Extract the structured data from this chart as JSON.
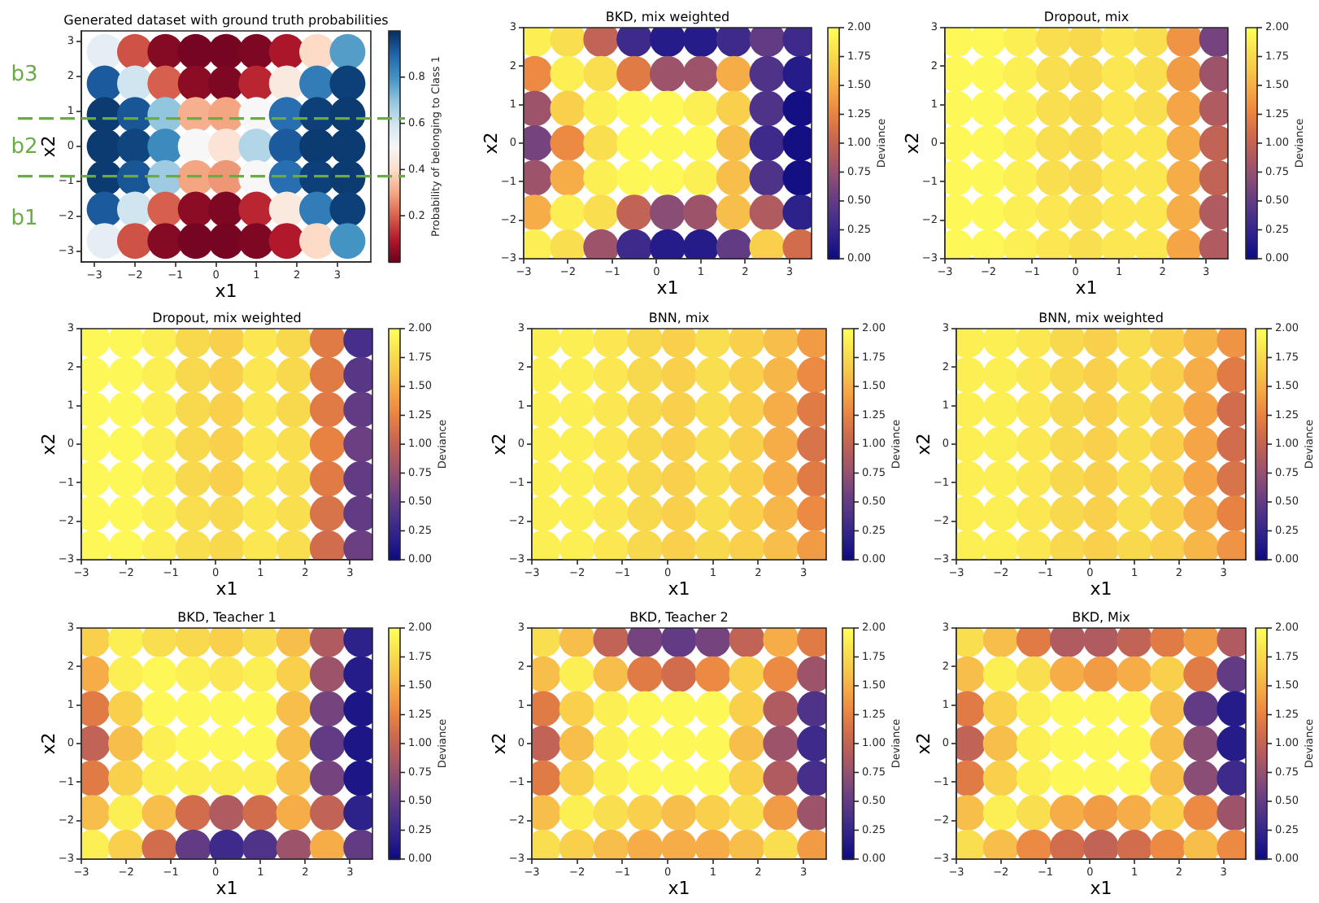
{
  "chart_data": [
    {
      "type": "scatter",
      "title": "Generated dataset with ground truth probabilities",
      "xlabel": "x1",
      "ylabel": "x2",
      "clabel": "Probability of belonging to Class 1",
      "marker": "circle",
      "x": [
        -2.75,
        -2,
        -1.25,
        -0.5,
        0.25,
        1,
        1.75,
        2.5,
        3.25,
        -2.75,
        -2,
        -1.25,
        -0.5,
        0.25,
        1,
        1.75,
        2.5,
        3.25,
        -2.75,
        -2,
        -1.25,
        -0.5,
        0.25,
        1,
        1.75,
        2.5,
        3.25,
        -2.75,
        -2,
        -1.25,
        -0.5,
        0.25,
        1,
        1.75,
        2.5,
        3.25,
        -2.75,
        -2,
        -1.25,
        -0.5,
        0.25,
        1,
        1.75,
        2.5,
        3.25,
        -2.75,
        -2,
        -1.25,
        -0.5,
        0.25,
        1,
        1.75,
        2.5,
        3.25,
        -2.75,
        -2,
        -1.25,
        -0.5,
        0.25,
        1,
        1.75,
        2.5,
        3.25
      ],
      "values": [
        2.7,
        2.7,
        2.7,
        2.7,
        2.7,
        2.7,
        2.7,
        2.7,
        2.7,
        1.8,
        1.8,
        1.8,
        1.8,
        1.8,
        1.8,
        1.8,
        1.8,
        1.8,
        0.9,
        0.9,
        0.9,
        0.9,
        0.9,
        0.9,
        0.9,
        0.9,
        0.9,
        0,
        0,
        0,
        0,
        0,
        0,
        0,
        0,
        0,
        -0.9,
        -0.9,
        -0.9,
        -0.9,
        -0.9,
        -0.9,
        -0.9,
        -0.9,
        -0.9,
        -1.8,
        -1.8,
        -1.8,
        -1.8,
        -1.8,
        -1.8,
        -1.8,
        -1.8,
        -1.8,
        -2.7,
        -2.7,
        -2.7,
        -2.7,
        -2.7,
        -2.7,
        -2.7,
        -2.7,
        -2.7
      ],
      "cvalues": [
        0.55,
        0.18,
        0.04,
        0.02,
        0.02,
        0.03,
        0.09,
        0.4,
        0.78,
        0.92,
        0.6,
        0.2,
        0.05,
        0.03,
        0.12,
        0.45,
        0.85,
        0.97,
        0.98,
        0.93,
        0.7,
        0.32,
        0.3,
        0.5,
        0.88,
        0.97,
        0.98,
        0.98,
        0.96,
        0.82,
        0.5,
        0.43,
        0.65,
        0.92,
        0.98,
        0.98,
        0.98,
        0.93,
        0.68,
        0.3,
        0.28,
        0.5,
        0.88,
        0.97,
        0.98,
        0.92,
        0.6,
        0.2,
        0.05,
        0.03,
        0.12,
        0.45,
        0.85,
        0.97,
        0.55,
        0.18,
        0.04,
        0.02,
        0.02,
        0.03,
        0.1,
        0.4,
        0.8
      ],
      "xlim": [
        -3.325,
        3.825
      ],
      "ylim": [
        -3.3,
        3.3
      ],
      "xticks": [
        -3,
        -2,
        -1,
        0,
        1,
        2,
        3
      ],
      "yticks": [
        -3,
        -2,
        -1,
        0,
        1,
        2,
        3
      ],
      "clim": [
        0,
        1
      ],
      "cticks": [
        0.2,
        0.4,
        0.6,
        0.8
      ],
      "ref_lines": [
        {
          "axis": "y",
          "value": 0.8,
          "color": "#6aab46",
          "line_style": "dashed"
        },
        {
          "axis": "y",
          "value": -0.85,
          "color": "#6aab46",
          "line_style": "dashed"
        }
      ],
      "annotations": [
        "b3",
        "b2",
        "b1"
      ]
    },
    {
      "type": "scatter",
      "title": "BKD, mix weighted",
      "xlabel": "x1",
      "ylabel": "x2",
      "clabel": "Deviance",
      "marker": "circle",
      "x": [
        -2.75,
        -2,
        -1.25,
        -0.5,
        0.25,
        1,
        1.75,
        2.5,
        3.25,
        -2.75,
        -2,
        -1.25,
        -0.5,
        0.25,
        1,
        1.75,
        2.5,
        3.25,
        -2.75,
        -2,
        -1.25,
        -0.5,
        0.25,
        1,
        1.75,
        2.5,
        3.25,
        -2.75,
        -2,
        -1.25,
        -0.5,
        0.25,
        1,
        1.75,
        2.5,
        3.25,
        -2.75,
        -2,
        -1.25,
        -0.5,
        0.25,
        1,
        1.75,
        2.5,
        3.25,
        -2.75,
        -2,
        -1.25,
        -0.5,
        0.25,
        1,
        1.75,
        2.5,
        3.25,
        -2.75,
        -2,
        -1.25,
        -0.5,
        0.25,
        1,
        1.75,
        2.5,
        3.25
      ],
      "values": [
        2.7,
        2.7,
        2.7,
        2.7,
        2.7,
        2.7,
        2.7,
        2.7,
        2.7,
        1.8,
        1.8,
        1.8,
        1.8,
        1.8,
        1.8,
        1.8,
        1.8,
        1.8,
        0.9,
        0.9,
        0.9,
        0.9,
        0.9,
        0.9,
        0.9,
        0.9,
        0.9,
        0,
        0,
        0,
        0,
        0,
        0,
        0,
        0,
        0,
        -0.9,
        -0.9,
        -0.9,
        -0.9,
        -0.9,
        -0.9,
        -0.9,
        -0.9,
        -0.9,
        -1.8,
        -1.8,
        -1.8,
        -1.8,
        -1.8,
        -1.8,
        -1.8,
        -1.8,
        -1.8,
        -2.7,
        -2.7,
        -2.7,
        -2.7,
        -2.7,
        -2.7,
        -2.7,
        -2.7,
        -2.7
      ],
      "cvalues": [
        1.9,
        1.8,
        1.0,
        0.3,
        0.15,
        0.15,
        0.3,
        0.5,
        0.3,
        1.3,
        1.9,
        1.8,
        1.2,
        0.8,
        0.8,
        1.5,
        0.4,
        0.15,
        0.8,
        1.7,
        1.9,
        1.95,
        1.95,
        1.9,
        1.7,
        0.4,
        0.05,
        0.6,
        1.3,
        1.8,
        1.95,
        1.95,
        1.95,
        1.6,
        0.3,
        0.05,
        0.8,
        1.5,
        1.9,
        1.95,
        1.95,
        1.9,
        1.6,
        0.4,
        0.05,
        1.5,
        1.9,
        1.8,
        1.0,
        0.7,
        0.8,
        1.6,
        0.9,
        0.2,
        1.9,
        1.8,
        0.8,
        0.3,
        0.15,
        0.15,
        0.5,
        1.7,
        1.1
      ],
      "xlim": [
        -3,
        3.5
      ],
      "ylim": [
        -3,
        3
      ],
      "xticks": [
        -3,
        -2,
        -1,
        0,
        1,
        2,
        3
      ],
      "yticks": [
        -3,
        -2,
        -1,
        0,
        1,
        2,
        3
      ],
      "clim": [
        0,
        2
      ],
      "cticks": [
        {
          "value": 0,
          "label": "0.00"
        },
        0.25,
        {
          "value": 0.5,
          "label": "0.50"
        },
        0.75,
        {
          "value": 1,
          "label": "1.00"
        },
        1.25,
        {
          "value": 1.5,
          "label": "1.50"
        },
        1.75,
        {
          "value": 2,
          "label": "2.00"
        }
      ]
    },
    {
      "type": "scatter",
      "title": "Dropout, mix",
      "xlabel": "x1",
      "ylabel": "x2",
      "clabel": "Deviance",
      "marker": "circle",
      "x": [
        -2.75,
        -2,
        -1.25,
        -0.5,
        0.25,
        1,
        1.75,
        2.5,
        3.25,
        -2.75,
        -2,
        -1.25,
        -0.5,
        0.25,
        1,
        1.75,
        2.5,
        3.25,
        -2.75,
        -2,
        -1.25,
        -0.5,
        0.25,
        1,
        1.75,
        2.5,
        3.25,
        -2.75,
        -2,
        -1.25,
        -0.5,
        0.25,
        1,
        1.75,
        2.5,
        3.25,
        -2.75,
        -2,
        -1.25,
        -0.5,
        0.25,
        1,
        1.75,
        2.5,
        3.25,
        -2.75,
        -2,
        -1.25,
        -0.5,
        0.25,
        1,
        1.75,
        2.5,
        3.25,
        -2.75,
        -2,
        -1.25,
        -0.5,
        0.25,
        1,
        1.75,
        2.5,
        3.25
      ],
      "values": [
        2.7,
        2.7,
        2.7,
        2.7,
        2.7,
        2.7,
        2.7,
        2.7,
        2.7,
        1.8,
        1.8,
        1.8,
        1.8,
        1.8,
        1.8,
        1.8,
        1.8,
        1.8,
        0.9,
        0.9,
        0.9,
        0.9,
        0.9,
        0.9,
        0.9,
        0.9,
        0.9,
        0,
        0,
        0,
        0,
        0,
        0,
        0,
        0,
        0,
        -0.9,
        -0.9,
        -0.9,
        -0.9,
        -0.9,
        -0.9,
        -0.9,
        -0.9,
        -0.9,
        -1.8,
        -1.8,
        -1.8,
        -1.8,
        -1.8,
        -1.8,
        -1.8,
        -1.8,
        -1.8,
        -2.7,
        -2.7,
        -2.7,
        -2.7,
        -2.7,
        -2.7,
        -2.7,
        -2.7,
        -2.7
      ],
      "cvalues": [
        1.95,
        1.95,
        1.9,
        1.8,
        1.75,
        1.85,
        1.8,
        1.35,
        0.6,
        1.95,
        1.95,
        1.9,
        1.8,
        1.75,
        1.85,
        1.8,
        1.4,
        0.8,
        1.95,
        1.95,
        1.9,
        1.8,
        1.75,
        1.85,
        1.8,
        1.45,
        0.9,
        1.95,
        1.95,
        1.9,
        1.8,
        1.75,
        1.85,
        1.85,
        1.5,
        1.0,
        1.95,
        1.95,
        1.9,
        1.8,
        1.75,
        1.85,
        1.85,
        1.5,
        1.0,
        1.95,
        1.95,
        1.9,
        1.85,
        1.8,
        1.85,
        1.85,
        1.5,
        0.9,
        1.95,
        1.95,
        1.9,
        1.85,
        1.8,
        1.85,
        1.85,
        1.45,
        0.9
      ],
      "xlim": [
        -3,
        3.5
      ],
      "ylim": [
        -3,
        3
      ],
      "xticks": [
        -3,
        -2,
        -1,
        0,
        1,
        2,
        3
      ],
      "yticks": [
        -3,
        -2,
        -1,
        0,
        1,
        2,
        3
      ],
      "clim": [
        0,
        2
      ],
      "cticks": [
        {
          "value": 0,
          "label": "0.00"
        },
        0.25,
        {
          "value": 0.5,
          "label": "0.50"
        },
        0.75,
        {
          "value": 1,
          "label": "1.00"
        },
        1.25,
        {
          "value": 1.5,
          "label": "1.50"
        },
        1.75,
        {
          "value": 2,
          "label": "2.00"
        }
      ]
    },
    {
      "type": "scatter",
      "title": "Dropout, mix weighted",
      "xlabel": "x1",
      "ylabel": "x2",
      "clabel": "Deviance",
      "marker": "circle",
      "x": [
        -2.75,
        -2,
        -1.25,
        -0.5,
        0.25,
        1,
        1.75,
        2.5,
        3.25,
        -2.75,
        -2,
        -1.25,
        -0.5,
        0.25,
        1,
        1.75,
        2.5,
        3.25,
        -2.75,
        -2,
        -1.25,
        -0.5,
        0.25,
        1,
        1.75,
        2.5,
        3.25,
        -2.75,
        -2,
        -1.25,
        -0.5,
        0.25,
        1,
        1.75,
        2.5,
        3.25,
        -2.75,
        -2,
        -1.25,
        -0.5,
        0.25,
        1,
        1.75,
        2.5,
        3.25,
        -2.75,
        -2,
        -1.25,
        -0.5,
        0.25,
        1,
        1.75,
        2.5,
        3.25,
        -2.75,
        -2,
        -1.25,
        -0.5,
        0.25,
        1,
        1.75,
        2.5,
        3.25
      ],
      "values": [
        2.7,
        2.7,
        2.7,
        2.7,
        2.7,
        2.7,
        2.7,
        2.7,
        2.7,
        1.8,
        1.8,
        1.8,
        1.8,
        1.8,
        1.8,
        1.8,
        1.8,
        1.8,
        0.9,
        0.9,
        0.9,
        0.9,
        0.9,
        0.9,
        0.9,
        0.9,
        0.9,
        0,
        0,
        0,
        0,
        0,
        0,
        0,
        0,
        0,
        -0.9,
        -0.9,
        -0.9,
        -0.9,
        -0.9,
        -0.9,
        -0.9,
        -0.9,
        -0.9,
        -1.8,
        -1.8,
        -1.8,
        -1.8,
        -1.8,
        -1.8,
        -1.8,
        -1.8,
        -1.8,
        -2.7,
        -2.7,
        -2.7,
        -2.7,
        -2.7,
        -2.7,
        -2.7,
        -2.7,
        -2.7
      ],
      "cvalues": [
        1.95,
        1.95,
        1.9,
        1.75,
        1.7,
        1.85,
        1.75,
        1.2,
        0.35,
        1.95,
        1.95,
        1.9,
        1.75,
        1.7,
        1.85,
        1.75,
        1.2,
        0.45,
        1.95,
        1.95,
        1.9,
        1.75,
        1.7,
        1.85,
        1.75,
        1.2,
        0.5,
        1.95,
        1.95,
        1.9,
        1.75,
        1.7,
        1.85,
        1.8,
        1.25,
        0.55,
        1.95,
        1.95,
        1.9,
        1.75,
        1.7,
        1.85,
        1.8,
        1.2,
        0.5,
        1.95,
        1.95,
        1.9,
        1.8,
        1.75,
        1.85,
        1.8,
        1.15,
        0.5,
        1.95,
        1.95,
        1.9,
        1.8,
        1.75,
        1.85,
        1.8,
        1.1,
        0.55
      ],
      "xlim": [
        -3,
        3.5
      ],
      "ylim": [
        -3,
        3
      ],
      "xticks": [
        -3,
        -2,
        -1,
        0,
        1,
        2,
        3
      ],
      "yticks": [
        -3,
        -2,
        -1,
        0,
        1,
        2,
        3
      ],
      "clim": [
        0,
        2
      ],
      "cticks": [
        {
          "value": 0,
          "label": "0.00"
        },
        0.25,
        {
          "value": 0.5,
          "label": "0.50"
        },
        0.75,
        {
          "value": 1,
          "label": "1.00"
        },
        1.25,
        {
          "value": 1.5,
          "label": "1.50"
        },
        1.75,
        {
          "value": 2,
          "label": "2.00"
        }
      ]
    },
    {
      "type": "scatter",
      "title": "BNN, mix",
      "xlabel": "x1",
      "ylabel": "x2",
      "clabel": "Deviance",
      "marker": "circle",
      "x": [
        -2.75,
        -2,
        -1.25,
        -0.5,
        0.25,
        1,
        1.75,
        2.5,
        3.25,
        -2.75,
        -2,
        -1.25,
        -0.5,
        0.25,
        1,
        1.75,
        2.5,
        3.25,
        -2.75,
        -2,
        -1.25,
        -0.5,
        0.25,
        1,
        1.75,
        2.5,
        3.25,
        -2.75,
        -2,
        -1.25,
        -0.5,
        0.25,
        1,
        1.75,
        2.5,
        3.25,
        -2.75,
        -2,
        -1.25,
        -0.5,
        0.25,
        1,
        1.75,
        2.5,
        3.25,
        -2.75,
        -2,
        -1.25,
        -0.5,
        0.25,
        1,
        1.75,
        2.5,
        3.25,
        -2.75,
        -2,
        -1.25,
        -0.5,
        0.25,
        1,
        1.75,
        2.5,
        3.25
      ],
      "values": [
        2.7,
        2.7,
        2.7,
        2.7,
        2.7,
        2.7,
        2.7,
        2.7,
        2.7,
        1.8,
        1.8,
        1.8,
        1.8,
        1.8,
        1.8,
        1.8,
        1.8,
        1.8,
        0.9,
        0.9,
        0.9,
        0.9,
        0.9,
        0.9,
        0.9,
        0.9,
        0.9,
        0,
        0,
        0,
        0,
        0,
        0,
        0,
        0,
        0,
        -0.9,
        -0.9,
        -0.9,
        -0.9,
        -0.9,
        -0.9,
        -0.9,
        -0.9,
        -0.9,
        -1.8,
        -1.8,
        -1.8,
        -1.8,
        -1.8,
        -1.8,
        -1.8,
        -1.8,
        -1.8,
        -2.7,
        -2.7,
        -2.7,
        -2.7,
        -2.7,
        -2.7,
        -2.7,
        -2.7,
        -2.7
      ],
      "cvalues": [
        1.9,
        1.9,
        1.85,
        1.75,
        1.7,
        1.8,
        1.7,
        1.6,
        1.4,
        1.9,
        1.9,
        1.85,
        1.75,
        1.7,
        1.8,
        1.7,
        1.55,
        1.3,
        1.9,
        1.9,
        1.85,
        1.75,
        1.7,
        1.8,
        1.7,
        1.5,
        1.2,
        1.9,
        1.9,
        1.85,
        1.75,
        1.7,
        1.8,
        1.7,
        1.5,
        1.15,
        1.9,
        1.9,
        1.85,
        1.75,
        1.7,
        1.8,
        1.7,
        1.5,
        1.2,
        1.9,
        1.9,
        1.85,
        1.75,
        1.7,
        1.8,
        1.7,
        1.55,
        1.3,
        1.9,
        1.9,
        1.85,
        1.75,
        1.7,
        1.75,
        1.7,
        1.6,
        1.4
      ],
      "xlim": [
        -3,
        3.5
      ],
      "ylim": [
        -3,
        3
      ],
      "xticks": [
        -3,
        -2,
        -1,
        0,
        1,
        2,
        3
      ],
      "yticks": [
        -3,
        -2,
        -1,
        0,
        1,
        2,
        3
      ],
      "clim": [
        0,
        2
      ],
      "cticks": [
        {
          "value": 0,
          "label": "0.00"
        },
        0.25,
        {
          "value": 0.5,
          "label": "0.50"
        },
        0.75,
        {
          "value": 1,
          "label": "1.00"
        },
        1.25,
        {
          "value": 1.5,
          "label": "1.50"
        },
        1.75,
        {
          "value": 2,
          "label": "2.00"
        }
      ]
    },
    {
      "type": "scatter",
      "title": "BNN, mix weighted",
      "xlabel": "x1",
      "ylabel": "x2",
      "clabel": "Deviance",
      "marker": "circle",
      "x": [
        -2.75,
        -2,
        -1.25,
        -0.5,
        0.25,
        1,
        1.75,
        2.5,
        3.25,
        -2.75,
        -2,
        -1.25,
        -0.5,
        0.25,
        1,
        1.75,
        2.5,
        3.25,
        -2.75,
        -2,
        -1.25,
        -0.5,
        0.25,
        1,
        1.75,
        2.5,
        3.25,
        -2.75,
        -2,
        -1.25,
        -0.5,
        0.25,
        1,
        1.75,
        2.5,
        3.25,
        -2.75,
        -2,
        -1.25,
        -0.5,
        0.25,
        1,
        1.75,
        2.5,
        3.25,
        -2.75,
        -2,
        -1.25,
        -0.5,
        0.25,
        1,
        1.75,
        2.5,
        3.25,
        -2.75,
        -2,
        -1.25,
        -0.5,
        0.25,
        1,
        1.75,
        2.5,
        3.25
      ],
      "values": [
        2.7,
        2.7,
        2.7,
        2.7,
        2.7,
        2.7,
        2.7,
        2.7,
        2.7,
        1.8,
        1.8,
        1.8,
        1.8,
        1.8,
        1.8,
        1.8,
        1.8,
        1.8,
        0.9,
        0.9,
        0.9,
        0.9,
        0.9,
        0.9,
        0.9,
        0.9,
        0.9,
        0,
        0,
        0,
        0,
        0,
        0,
        0,
        0,
        0,
        -0.9,
        -0.9,
        -0.9,
        -0.9,
        -0.9,
        -0.9,
        -0.9,
        -0.9,
        -0.9,
        -1.8,
        -1.8,
        -1.8,
        -1.8,
        -1.8,
        -1.8,
        -1.8,
        -1.8,
        -1.8,
        -2.7,
        -2.7,
        -2.7,
        -2.7,
        -2.7,
        -2.7,
        -2.7,
        -2.7,
        -2.7
      ],
      "cvalues": [
        1.9,
        1.9,
        1.85,
        1.75,
        1.7,
        1.8,
        1.7,
        1.55,
        1.35,
        1.9,
        1.9,
        1.85,
        1.75,
        1.7,
        1.8,
        1.7,
        1.5,
        1.2,
        1.9,
        1.9,
        1.85,
        1.75,
        1.7,
        1.8,
        1.7,
        1.45,
        1.1,
        1.9,
        1.9,
        1.85,
        1.75,
        1.7,
        1.8,
        1.7,
        1.45,
        1.1,
        1.9,
        1.9,
        1.85,
        1.75,
        1.7,
        1.8,
        1.7,
        1.45,
        1.15,
        1.9,
        1.9,
        1.85,
        1.75,
        1.7,
        1.8,
        1.7,
        1.5,
        1.25,
        1.9,
        1.9,
        1.85,
        1.75,
        1.7,
        1.75,
        1.7,
        1.55,
        1.35
      ],
      "xlim": [
        -3,
        3.5
      ],
      "ylim": [
        -3,
        3
      ],
      "xticks": [
        -3,
        -2,
        -1,
        0,
        1,
        2,
        3
      ],
      "yticks": [
        -3,
        -2,
        -1,
        0,
        1,
        2,
        3
      ],
      "clim": [
        0,
        2
      ],
      "cticks": [
        {
          "value": 0,
          "label": "0.00"
        },
        0.25,
        {
          "value": 0.5,
          "label": "0.50"
        },
        0.75,
        {
          "value": 1,
          "label": "1.00"
        },
        1.25,
        {
          "value": 1.5,
          "label": "1.50"
        },
        1.75,
        {
          "value": 2,
          "label": "2.00"
        }
      ]
    },
    {
      "type": "scatter",
      "title": "BKD, Teacher 1",
      "xlabel": "x1",
      "ylabel": "x2",
      "clabel": "Deviance",
      "marker": "circle",
      "x": [
        -2.75,
        -2,
        -1.25,
        -0.5,
        0.25,
        1,
        1.75,
        2.5,
        3.25,
        -2.75,
        -2,
        -1.25,
        -0.5,
        0.25,
        1,
        1.75,
        2.5,
        3.25,
        -2.75,
        -2,
        -1.25,
        -0.5,
        0.25,
        1,
        1.75,
        2.5,
        3.25,
        -2.75,
        -2,
        -1.25,
        -0.5,
        0.25,
        1,
        1.75,
        2.5,
        3.25,
        -2.75,
        -2,
        -1.25,
        -0.5,
        0.25,
        1,
        1.75,
        2.5,
        3.25,
        -2.75,
        -2,
        -1.25,
        -0.5,
        0.25,
        1,
        1.75,
        2.5,
        3.25,
        -2.75,
        -2,
        -1.25,
        -0.5,
        0.25,
        1,
        1.75,
        2.5,
        3.25
      ],
      "values": [
        2.7,
        2.7,
        2.7,
        2.7,
        2.7,
        2.7,
        2.7,
        2.7,
        2.7,
        1.8,
        1.8,
        1.8,
        1.8,
        1.8,
        1.8,
        1.8,
        1.8,
        1.8,
        0.9,
        0.9,
        0.9,
        0.9,
        0.9,
        0.9,
        0.9,
        0.9,
        0.9,
        0,
        0,
        0,
        0,
        0,
        0,
        0,
        0,
        0,
        -0.9,
        -0.9,
        -0.9,
        -0.9,
        -0.9,
        -0.9,
        -0.9,
        -0.9,
        -0.9,
        -1.8,
        -1.8,
        -1.8,
        -1.8,
        -1.8,
        -1.8,
        -1.8,
        -1.8,
        -1.8,
        -2.7,
        -2.7,
        -2.7,
        -2.7,
        -2.7,
        -2.7,
        -2.7,
        -2.7,
        -2.7
      ],
      "cvalues": [
        1.7,
        1.9,
        1.8,
        1.75,
        1.7,
        1.8,
        1.6,
        0.9,
        0.2,
        1.5,
        1.9,
        1.95,
        1.9,
        1.85,
        1.9,
        1.7,
        0.8,
        0.15,
        1.2,
        1.7,
        1.95,
        1.95,
        1.95,
        1.95,
        1.6,
        0.6,
        0.1,
        1.0,
        1.6,
        1.9,
        1.95,
        1.95,
        1.95,
        1.6,
        0.5,
        0.1,
        1.2,
        1.7,
        1.9,
        1.9,
        1.9,
        1.9,
        1.6,
        0.6,
        0.1,
        1.6,
        1.9,
        1.6,
        1.1,
        0.9,
        1.1,
        1.5,
        1.0,
        0.2,
        1.9,
        1.7,
        1.1,
        0.5,
        0.3,
        0.4,
        0.8,
        1.5,
        0.5
      ],
      "xlim": [
        -3,
        3.5
      ],
      "ylim": [
        -3,
        3
      ],
      "xticks": [
        -3,
        -2,
        -1,
        0,
        1,
        2,
        3
      ],
      "yticks": [
        -3,
        -2,
        -1,
        0,
        1,
        2,
        3
      ],
      "clim": [
        0,
        2
      ],
      "cticks": [
        {
          "value": 0,
          "label": "0.00"
        },
        0.25,
        {
          "value": 0.5,
          "label": "0.50"
        },
        0.75,
        {
          "value": 1,
          "label": "1.00"
        },
        1.25,
        {
          "value": 1.5,
          "label": "1.50"
        },
        1.75,
        {
          "value": 2,
          "label": "2.00"
        }
      ]
    },
    {
      "type": "scatter",
      "title": "BKD, Teacher 2",
      "xlabel": "x1",
      "ylabel": "x2",
      "clabel": "Deviance",
      "marker": "circle",
      "x": [
        -2.75,
        -2,
        -1.25,
        -0.5,
        0.25,
        1,
        1.75,
        2.5,
        3.25,
        -2.75,
        -2,
        -1.25,
        -0.5,
        0.25,
        1,
        1.75,
        2.5,
        3.25,
        -2.75,
        -2,
        -1.25,
        -0.5,
        0.25,
        1,
        1.75,
        2.5,
        3.25,
        -2.75,
        -2,
        -1.25,
        -0.5,
        0.25,
        1,
        1.75,
        2.5,
        3.25,
        -2.75,
        -2,
        -1.25,
        -0.5,
        0.25,
        1,
        1.75,
        2.5,
        3.25,
        -2.75,
        -2,
        -1.25,
        -0.5,
        0.25,
        1,
        1.75,
        2.5,
        3.25,
        -2.75,
        -2,
        -1.25,
        -0.5,
        0.25,
        1,
        1.75,
        2.5,
        3.25
      ],
      "values": [
        2.7,
        2.7,
        2.7,
        2.7,
        2.7,
        2.7,
        2.7,
        2.7,
        2.7,
        1.8,
        1.8,
        1.8,
        1.8,
        1.8,
        1.8,
        1.8,
        1.8,
        1.8,
        0.9,
        0.9,
        0.9,
        0.9,
        0.9,
        0.9,
        0.9,
        0.9,
        0.9,
        0,
        0,
        0,
        0,
        0,
        0,
        0,
        0,
        0,
        -0.9,
        -0.9,
        -0.9,
        -0.9,
        -0.9,
        -0.9,
        -0.9,
        -0.9,
        -0.9,
        -1.8,
        -1.8,
        -1.8,
        -1.8,
        -1.8,
        -1.8,
        -1.8,
        -1.8,
        -1.8,
        -2.7,
        -2.7,
        -2.7,
        -2.7,
        -2.7,
        -2.7,
        -2.7,
        -2.7,
        -2.7
      ],
      "cvalues": [
        1.8,
        1.6,
        1.0,
        0.6,
        0.5,
        0.6,
        1.0,
        1.5,
        1.2,
        1.6,
        1.9,
        1.6,
        1.2,
        1.1,
        1.3,
        1.7,
        1.3,
        0.8,
        1.2,
        1.7,
        1.9,
        1.95,
        1.95,
        1.95,
        1.7,
        0.9,
        0.4,
        1.0,
        1.6,
        1.9,
        1.95,
        1.95,
        1.95,
        1.6,
        0.8,
        0.3,
        1.2,
        1.7,
        1.9,
        1.95,
        1.95,
        1.95,
        1.7,
        0.9,
        0.35,
        1.6,
        1.9,
        1.8,
        1.7,
        1.6,
        1.7,
        1.8,
        1.4,
        0.8,
        1.8,
        1.7,
        1.6,
        1.5,
        1.5,
        1.5,
        1.6,
        1.8,
        1.4
      ],
      "xlim": [
        -3,
        3.5
      ],
      "ylim": [
        -3,
        3
      ],
      "xticks": [
        -3,
        -2,
        -1,
        0,
        1,
        2,
        3
      ],
      "yticks": [
        -3,
        -2,
        -1,
        0,
        1,
        2,
        3
      ],
      "clim": [
        0,
        2
      ],
      "cticks": [
        {
          "value": 0,
          "label": "0.00"
        },
        0.25,
        {
          "value": 0.5,
          "label": "0.50"
        },
        0.75,
        {
          "value": 1,
          "label": "1.00"
        },
        1.25,
        {
          "value": 1.5,
          "label": "1.50"
        },
        1.75,
        {
          "value": 2,
          "label": "2.00"
        }
      ]
    },
    {
      "type": "scatter",
      "title": "BKD, Mix",
      "xlabel": "x1",
      "ylabel": "x2",
      "clabel": "Deviance",
      "marker": "circle",
      "x": [
        -2.75,
        -2,
        -1.25,
        -0.5,
        0.25,
        1,
        1.75,
        2.5,
        3.25,
        -2.75,
        -2,
        -1.25,
        -0.5,
        0.25,
        1,
        1.75,
        2.5,
        3.25,
        -2.75,
        -2,
        -1.25,
        -0.5,
        0.25,
        1,
        1.75,
        2.5,
        3.25,
        -2.75,
        -2,
        -1.25,
        -0.5,
        0.25,
        1,
        1.75,
        2.5,
        3.25,
        -2.75,
        -2,
        -1.25,
        -0.5,
        0.25,
        1,
        1.75,
        2.5,
        3.25,
        -2.75,
        -2,
        -1.25,
        -0.5,
        0.25,
        1,
        1.75,
        2.5,
        3.25,
        -2.75,
        -2,
        -1.25,
        -0.5,
        0.25,
        1,
        1.75,
        2.5,
        3.25
      ],
      "values": [
        2.7,
        2.7,
        2.7,
        2.7,
        2.7,
        2.7,
        2.7,
        2.7,
        2.7,
        1.8,
        1.8,
        1.8,
        1.8,
        1.8,
        1.8,
        1.8,
        1.8,
        1.8,
        0.9,
        0.9,
        0.9,
        0.9,
        0.9,
        0.9,
        0.9,
        0.9,
        0.9,
        0,
        0,
        0,
        0,
        0,
        0,
        0,
        0,
        0,
        -0.9,
        -0.9,
        -0.9,
        -0.9,
        -0.9,
        -0.9,
        -0.9,
        -0.9,
        -0.9,
        -1.8,
        -1.8,
        -1.8,
        -1.8,
        -1.8,
        -1.8,
        -1.8,
        -1.8,
        -1.8,
        -2.7,
        -2.7,
        -2.7,
        -2.7,
        -2.7,
        -2.7,
        -2.7,
        -2.7,
        -2.7
      ],
      "cvalues": [
        1.8,
        1.6,
        1.2,
        0.9,
        0.9,
        1.0,
        1.2,
        1.4,
        0.9,
        1.6,
        1.9,
        1.8,
        1.5,
        1.4,
        1.5,
        1.7,
        1.2,
        0.5,
        1.2,
        1.7,
        1.9,
        1.95,
        1.95,
        1.95,
        1.6,
        0.5,
        0.15,
        1.0,
        1.6,
        1.9,
        1.95,
        1.95,
        1.95,
        1.6,
        0.7,
        0.15,
        1.2,
        1.7,
        1.9,
        1.95,
        1.95,
        1.95,
        1.6,
        0.7,
        0.3,
        1.6,
        1.9,
        1.8,
        1.5,
        1.4,
        1.5,
        1.7,
        1.3,
        0.8,
        1.8,
        1.6,
        1.3,
        1.1,
        1.0,
        1.1,
        1.3,
        1.6,
        1.3
      ],
      "xlim": [
        -3,
        3.5
      ],
      "ylim": [
        -3,
        3
      ],
      "xticks": [
        -3,
        -2,
        -1,
        0,
        1,
        2,
        3
      ],
      "yticks": [
        -3,
        -2,
        -1,
        0,
        1,
        2,
        3
      ],
      "clim": [
        0,
        2
      ],
      "cticks": [
        {
          "value": 0,
          "label": "0.00"
        },
        0.25,
        {
          "value": 0.5,
          "label": "0.50"
        },
        0.75,
        {
          "value": 1,
          "label": "1.00"
        },
        1.25,
        {
          "value": 1.5,
          "label": "1.50"
        },
        1.75,
        {
          "value": 2,
          "label": "2.00"
        }
      ]
    }
  ]
}
